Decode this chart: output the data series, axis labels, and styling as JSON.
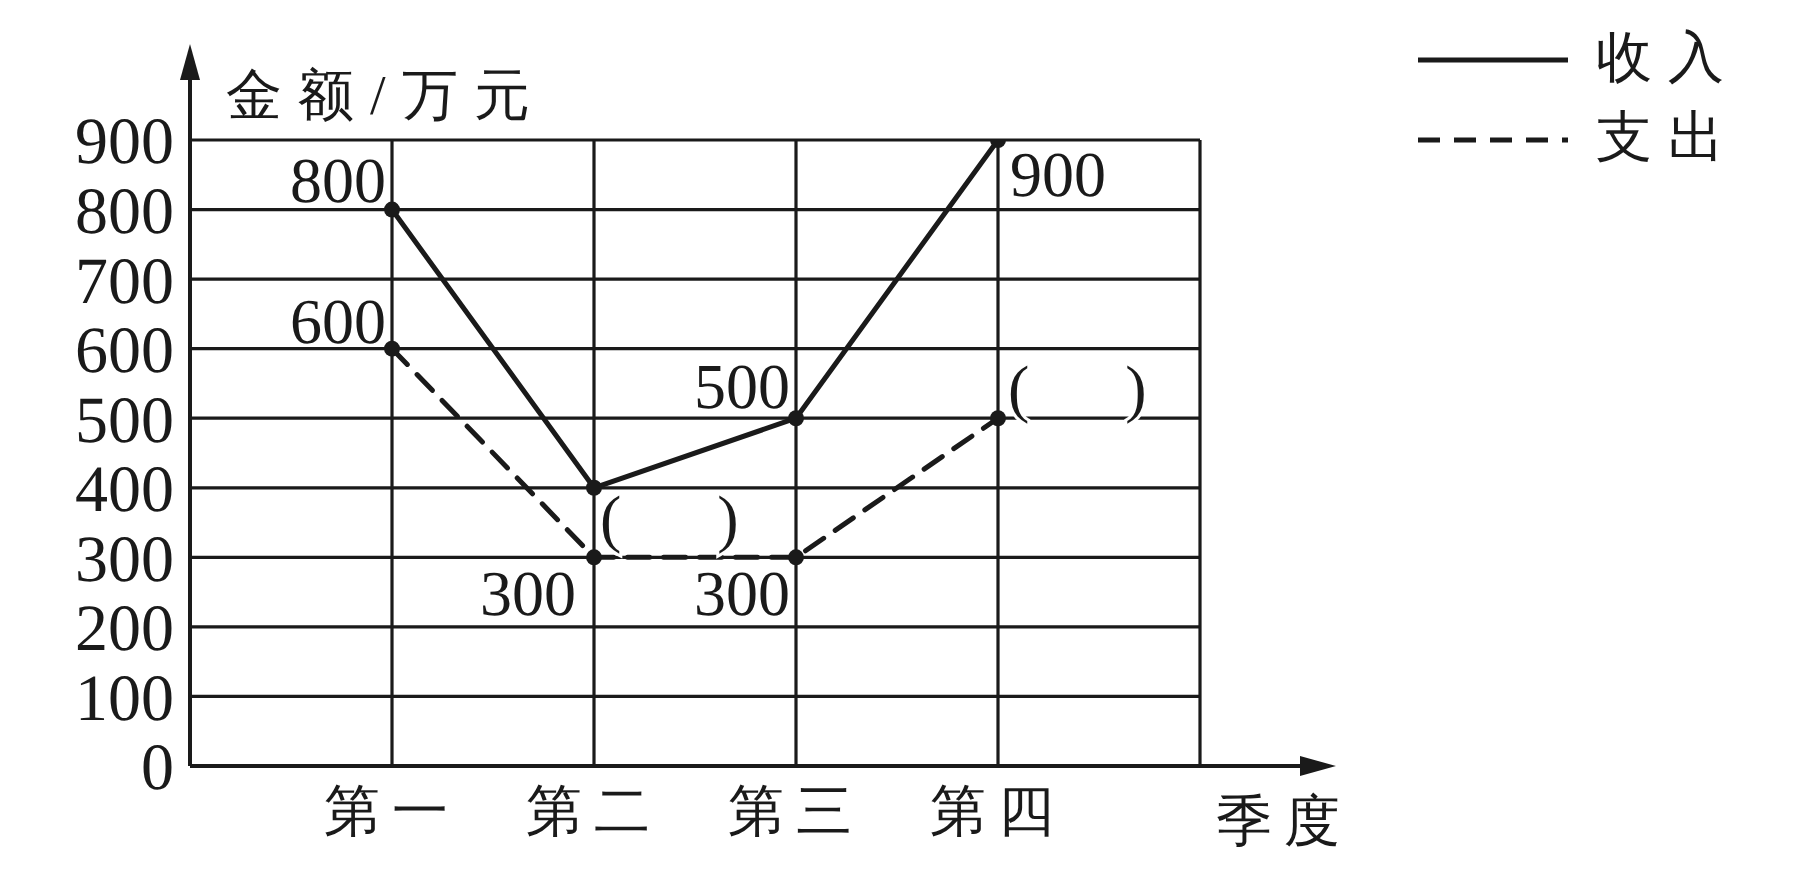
{
  "chart_data": {
    "type": "line",
    "categories": [
      "第一",
      "第二",
      "第三",
      "第四"
    ],
    "xlabel": "季度",
    "ylabel": "金额/万元",
    "ylim": [
      0,
      900
    ],
    "yticks": [
      0,
      100,
      200,
      300,
      400,
      500,
      600,
      700,
      800,
      900
    ],
    "grid": true,
    "legend": "top right",
    "marker": "circle",
    "series": [
      {
        "name": "收入",
        "color": "#1a1a1a",
        "line_style": "solid",
        "values": [
          800,
          400,
          500,
          900
        ],
        "value_labels": [
          "800",
          "(      )",
          "500",
          "900"
        ]
      },
      {
        "name": "支出",
        "color": "#1a1a1a",
        "line_style": "dashed",
        "values": [
          600,
          300,
          300,
          500
        ],
        "value_labels": [
          "600",
          "300",
          "300",
          "(      )"
        ]
      }
    ]
  }
}
